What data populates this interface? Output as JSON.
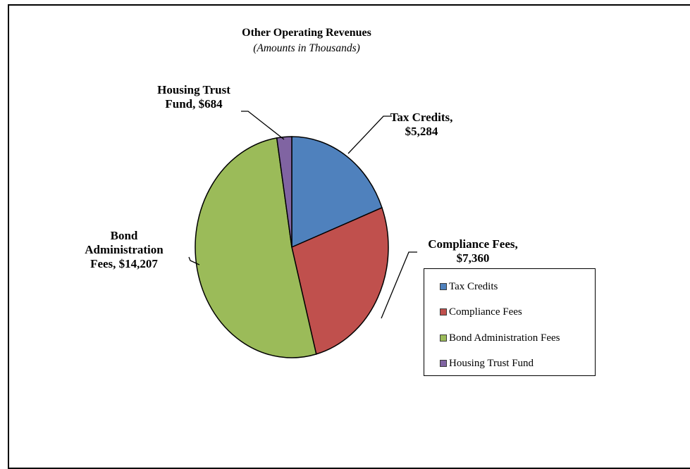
{
  "chart_data": {
    "type": "pie",
    "title": "Other Operating Revenues",
    "subtitle": "(Amounts in Thousands)",
    "slices": [
      {
        "name": "Tax Credits",
        "value": 5284,
        "color": "#4F81BD",
        "label_lines": [
          "Tax Credits,",
          "$5,284"
        ]
      },
      {
        "name": "Compliance Fees",
        "value": 7360,
        "color": "#C0504D",
        "label_lines": [
          "Compliance Fees,",
          "$7,360"
        ]
      },
      {
        "name": "Bond Administration Fees",
        "value": 14207,
        "color": "#9BBB59",
        "label_lines": [
          "Bond",
          "Administration",
          "Fees, $14,207"
        ]
      },
      {
        "name": "Housing Trust Fund",
        "value": 684,
        "color": "#8064A2",
        "label_lines": [
          "Housing Trust",
          "Fund, $684"
        ]
      }
    ],
    "legend": {
      "position": "right",
      "entries": [
        "Tax Credits",
        "Compliance Fees",
        "Bond Administration Fees",
        "Housing Trust Fund"
      ]
    }
  }
}
